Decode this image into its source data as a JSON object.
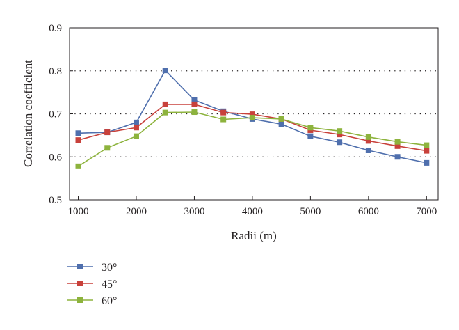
{
  "chart_data": {
    "type": "line",
    "title": "",
    "xlabel": "Radii (m)",
    "ylabel": "Correlation coefficient",
    "x": [
      1000,
      1500,
      2000,
      2500,
      3000,
      3500,
      4000,
      4500,
      5000,
      5500,
      6000,
      6500,
      7000
    ],
    "x_tick_values": [
      1000,
      2000,
      3000,
      4000,
      5000,
      6000,
      7000
    ],
    "x_tick_labels": [
      "1000",
      "2000",
      "3000",
      "4000",
      "5000",
      "6000",
      "7000"
    ],
    "y_tick_values": [
      0.5,
      0.6,
      0.7,
      0.8,
      0.9
    ],
    "y_tick_labels": [
      "0.5",
      "0.6",
      "0.7",
      "0.8",
      "0.9"
    ],
    "xlim": [
      850,
      7200
    ],
    "ylim": [
      0.5,
      0.9
    ],
    "grid": "horizontal dotted",
    "legend_position": "bottom-left",
    "series": [
      {
        "name": "30°",
        "color": "#4f6fad",
        "values": [
          0.655,
          0.657,
          0.68,
          0.801,
          0.732,
          0.706,
          0.688,
          0.676,
          0.648,
          0.634,
          0.615,
          0.6,
          0.586
        ]
      },
      {
        "name": "45°",
        "color": "#c8413b",
        "values": [
          0.639,
          0.657,
          0.668,
          0.722,
          0.722,
          0.703,
          0.699,
          0.688,
          0.662,
          0.652,
          0.637,
          0.625,
          0.614
        ]
      },
      {
        "name": "60°",
        "color": "#8db33d",
        "values": [
          0.578,
          0.621,
          0.648,
          0.703,
          0.704,
          0.687,
          0.691,
          0.688,
          0.668,
          0.66,
          0.646,
          0.635,
          0.627
        ]
      }
    ]
  }
}
